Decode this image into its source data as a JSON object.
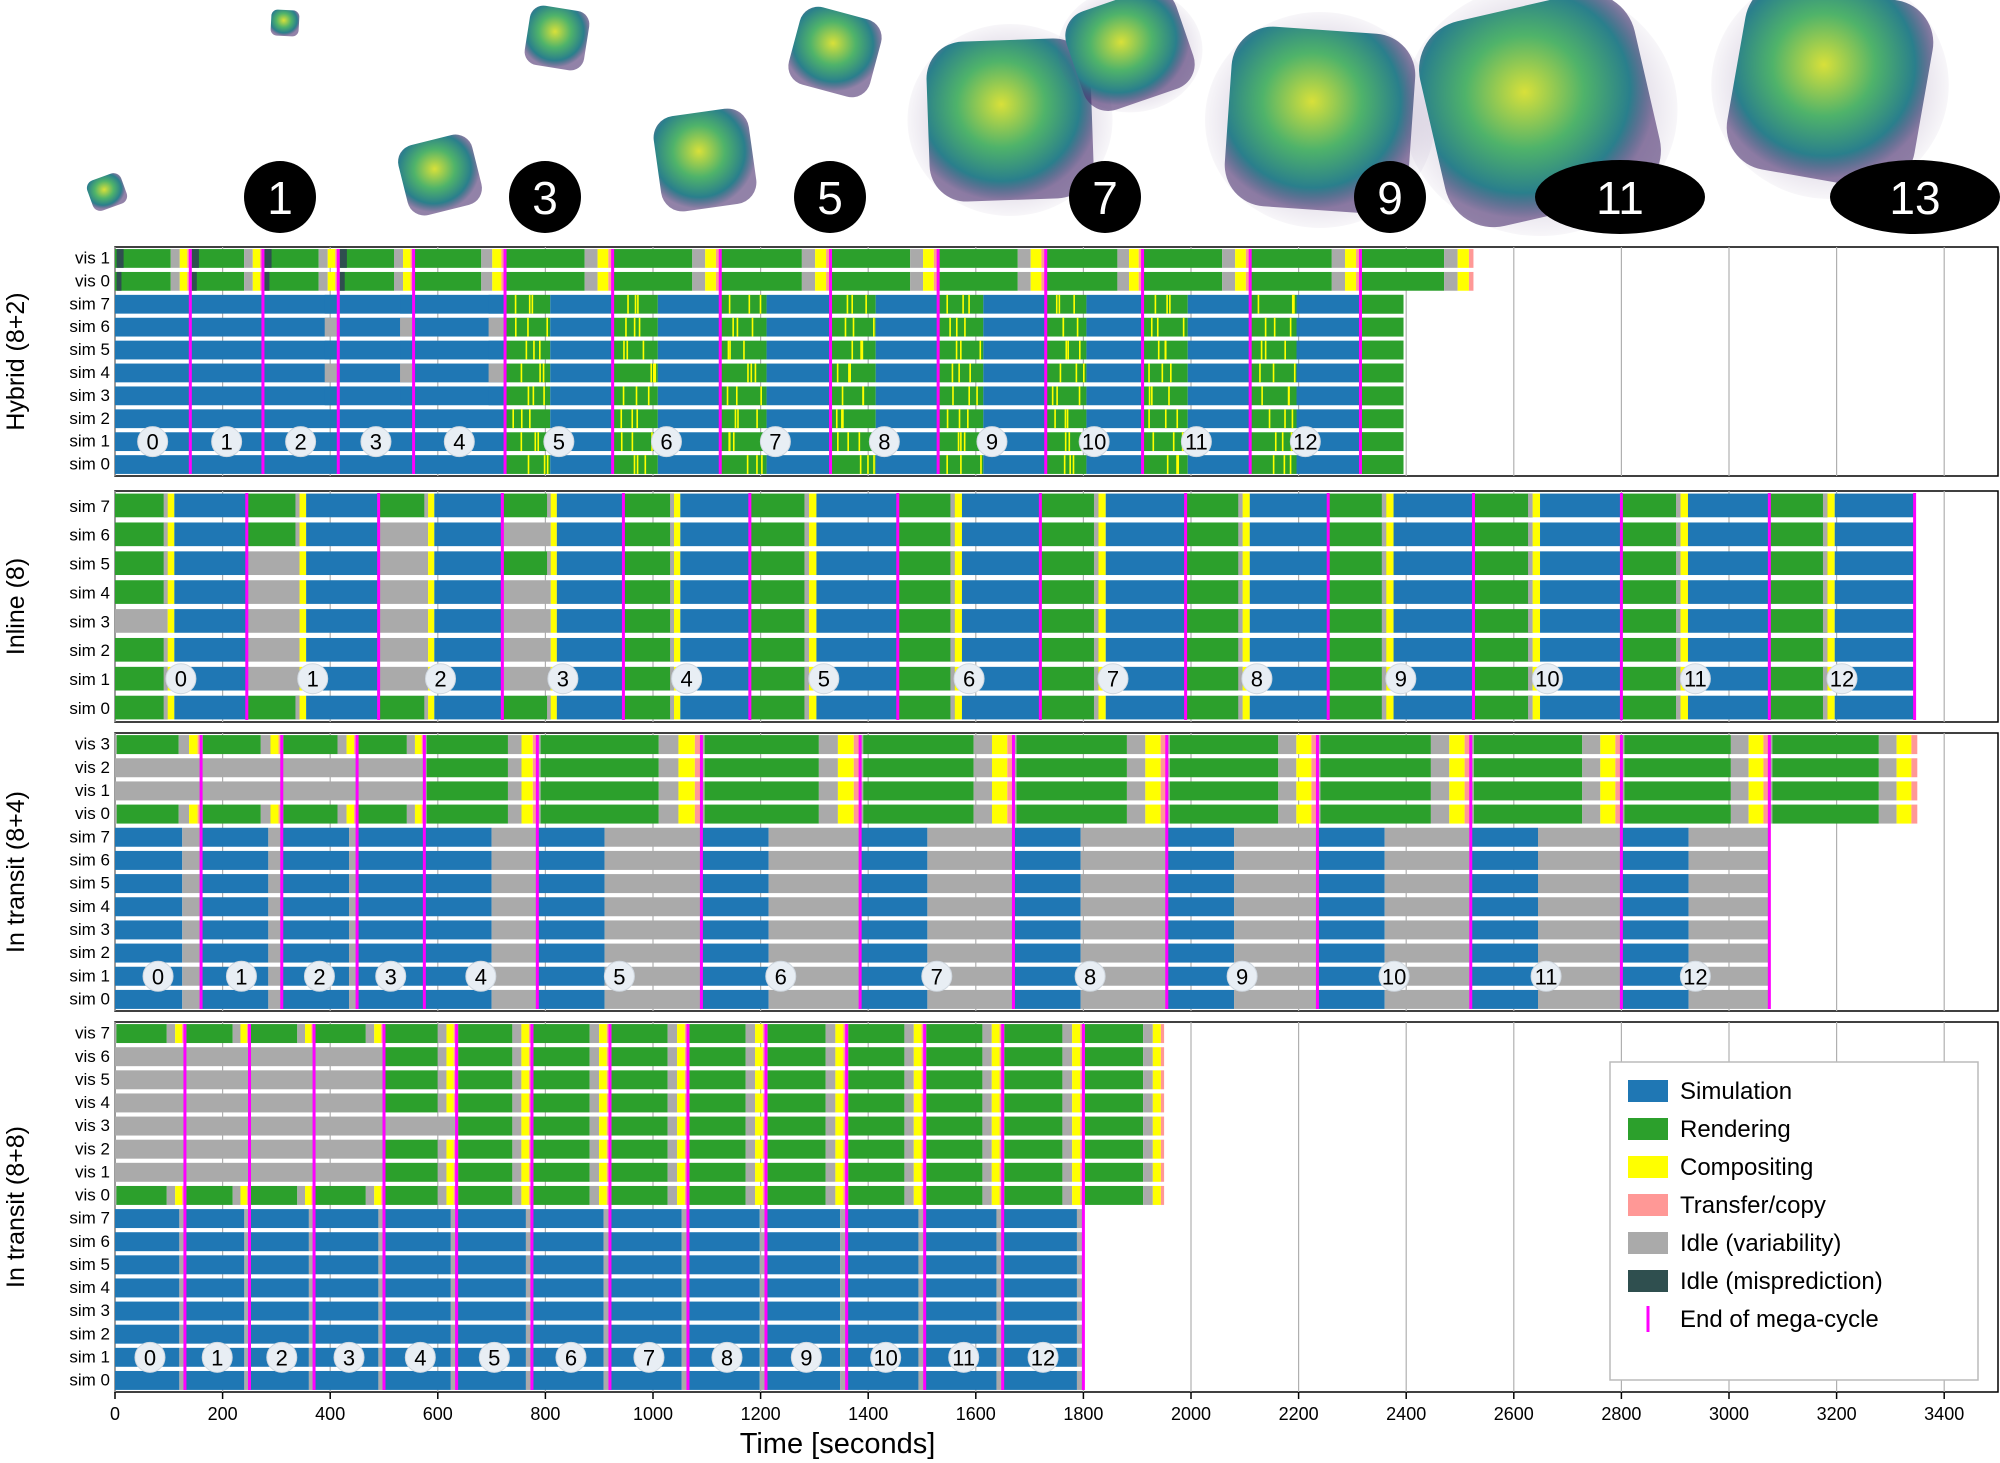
{
  "x_axis": {
    "label": "Time [seconds]",
    "min": 0,
    "max": 3500,
    "ticks": [
      0,
      200,
      400,
      600,
      800,
      1000,
      1200,
      1400,
      1600,
      1800,
      2000,
      2200,
      2400,
      2600,
      2800,
      3000,
      3200,
      3400
    ]
  },
  "colors": {
    "simulation": "#1f77b4",
    "rendering": "#2ca02c",
    "compositing": "#ffff00",
    "transfer": "#ff9896",
    "idle_variability": "#aaaaaa",
    "idle_misprediction": "#2f4f4f",
    "mega_cycle_end": "#ff00ff"
  },
  "legend": {
    "position": "bottom-right",
    "items": [
      {
        "key": "simulation",
        "label": "Simulation"
      },
      {
        "key": "rendering",
        "label": "Rendering"
      },
      {
        "key": "compositing",
        "label": "Compositing"
      },
      {
        "key": "transfer",
        "label": "Transfer/copy"
      },
      {
        "key": "idle_variability",
        "label": "Idle (variability)"
      },
      {
        "key": "idle_misprediction",
        "label": "Idle (misprediction)"
      },
      {
        "key": "mega_cycle_end",
        "label": "End of mega-cycle",
        "marker": "line"
      }
    ]
  },
  "top_badges": [
    {
      "label": "1",
      "shape": "circle"
    },
    {
      "label": "3",
      "shape": "circle"
    },
    {
      "label": "5",
      "shape": "circle"
    },
    {
      "label": "7",
      "shape": "circle"
    },
    {
      "label": "9",
      "shape": "circle"
    },
    {
      "label": "11",
      "shape": "ellipse"
    },
    {
      "label": "13",
      "shape": "ellipse"
    }
  ],
  "chart_data": [
    {
      "type": "gantt",
      "ylabel": "Hybrid (8+2)",
      "rows": [
        "vis 1",
        "vis 0",
        "sim 7",
        "sim 6",
        "sim 5",
        "sim 4",
        "sim 3",
        "sim 2",
        "sim 1",
        "sim 0"
      ],
      "vis_rows": 2,
      "sim_end": 2395,
      "vis_end": 2525,
      "mega_cycle_ends": [
        140,
        275,
        415,
        555,
        725,
        925,
        1125,
        1330,
        1530,
        1730,
        1910,
        2110,
        2315
      ],
      "cycle_labels": [
        "0",
        "1",
        "2",
        "3",
        "4",
        "5",
        "6",
        "7",
        "8",
        "9",
        "10",
        "11",
        "12"
      ],
      "sim_dominant_until_cycle": 5
    },
    {
      "type": "gantt",
      "ylabel": "Inline (8)",
      "rows": [
        "sim 7",
        "sim 6",
        "sim 5",
        "sim 4",
        "sim 3",
        "sim 2",
        "sim 1",
        "sim 0"
      ],
      "vis_rows": 0,
      "sim_end": 3500,
      "mega_cycle_ends": [
        245,
        490,
        720,
        945,
        1180,
        1455,
        1720,
        1990,
        2255,
        2525,
        2800,
        3075,
        3345
      ],
      "cycle_labels": [
        "0",
        "1",
        "2",
        "3",
        "4",
        "5",
        "6",
        "7",
        "8",
        "9",
        "10",
        "11",
        "12"
      ]
    },
    {
      "type": "gantt",
      "ylabel": "In transit (8+4)",
      "rows": [
        "vis 3",
        "vis 2",
        "vis 1",
        "vis 0",
        "sim 7",
        "sim 6",
        "sim 5",
        "sim 4",
        "sim 3",
        "sim 2",
        "sim 1",
        "sim 0"
      ],
      "vis_rows": 4,
      "sim_end": 3075,
      "vis_end": 3350,
      "mega_cycle_ends": [
        160,
        310,
        450,
        575,
        785,
        1090,
        1385,
        1670,
        1955,
        2235,
        2520,
        2800,
        3075
      ],
      "cycle_labels": [
        "0",
        "1",
        "2",
        "3",
        "4",
        "5",
        "6",
        "7",
        "8",
        "9",
        "10",
        "11",
        "12"
      ]
    },
    {
      "type": "gantt",
      "ylabel": "In transit (8+8)",
      "rows": [
        "vis 7",
        "vis 6",
        "vis 5",
        "vis 4",
        "vis 3",
        "vis 2",
        "vis 1",
        "vis 0",
        "sim 7",
        "sim 6",
        "sim 5",
        "sim 4",
        "sim 3",
        "sim 2",
        "sim 1",
        "sim 0"
      ],
      "vis_rows": 8,
      "sim_end": 1800,
      "vis_end": 1950,
      "mega_cycle_ends": [
        130,
        250,
        370,
        500,
        635,
        775,
        920,
        1065,
        1210,
        1360,
        1505,
        1650,
        1800
      ],
      "cycle_labels": [
        "0",
        "1",
        "2",
        "3",
        "4",
        "5",
        "6",
        "7",
        "8",
        "9",
        "10",
        "11",
        "12"
      ]
    }
  ]
}
